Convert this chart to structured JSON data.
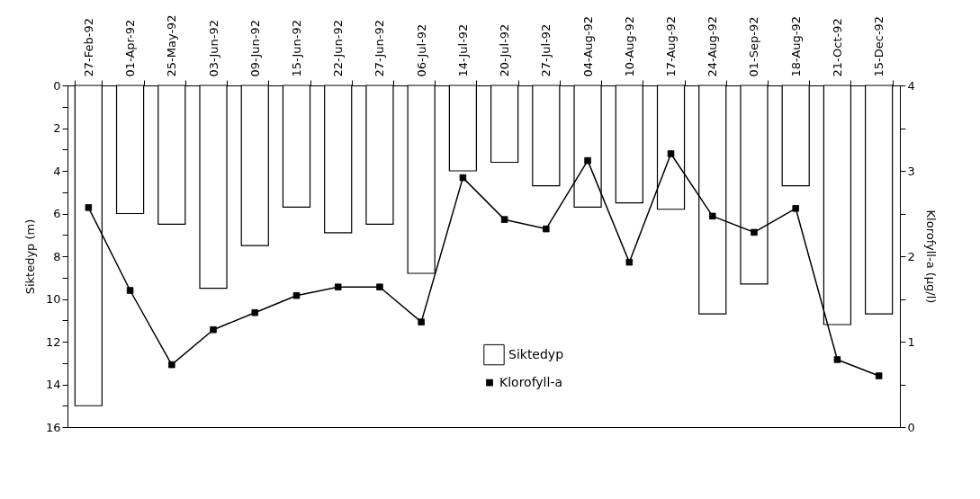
{
  "chart_data": {
    "type": "bar",
    "ylabel": "Siktedyp (m)",
    "y2label": "Klorofyll-a (µg/l)",
    "categories": [
      "27-Feb-92",
      "01-Apr-92",
      "25-May-92",
      "03-Jun-92",
      "09-Jun-92",
      "15-Jun-92",
      "22-Jun-92",
      "27-Jun-92",
      "06-Jul-92",
      "14-Jul-92",
      "20-Jul-92",
      "27-Jul-92",
      "04-Aug-92",
      "10-Aug-92",
      "17-Aug-92",
      "24-Aug-92",
      "01-Sep-92",
      "18-Aug-92",
      "21-Oct-92",
      "15-Dec-92"
    ],
    "series": [
      {
        "name": "Siktedyp",
        "color": "#ffffff",
        "values": [
          15.0,
          6.0,
          6.5,
          9.5,
          7.5,
          5.7,
          6.9,
          6.5,
          8.8,
          4.0,
          3.6,
          4.7,
          5.7,
          5.5,
          5.8,
          10.7,
          9.3,
          4.7,
          11.2,
          10.7
        ]
      },
      {
        "name": "Klorofyll-a",
        "type": "line",
        "axis": "y2",
        "color": "#000000",
        "marker": "square",
        "values": [
          2.57,
          1.6,
          0.73,
          1.14,
          1.34,
          1.54,
          1.64,
          1.64,
          1.23,
          2.92,
          2.43,
          2.32,
          3.12,
          1.93,
          3.2,
          2.47,
          2.28,
          2.56,
          0.79,
          0.6
        ]
      }
    ],
    "ylim": [
      16,
      0
    ],
    "yticks": [
      0,
      {
        "value": 1,
        "label": null
      },
      2,
      {
        "value": 3,
        "label": null
      },
      4,
      {
        "value": 5,
        "label": null
      },
      6,
      {
        "value": 7,
        "label": null
      },
      8,
      {
        "value": 9,
        "label": null
      },
      10,
      {
        "value": 11,
        "label": null
      },
      12,
      {
        "value": 13,
        "label": null
      },
      14,
      {
        "value": 15,
        "label": null
      },
      16
    ],
    "y2lim": [
      0,
      4
    ],
    "y2ticks": [
      0,
      {
        "value": 0.5,
        "label": null
      },
      1,
      {
        "value": 1.5,
        "label": null
      },
      2,
      {
        "value": 2.5,
        "label": null
      },
      3,
      {
        "value": 3.5,
        "label": null
      },
      4
    ],
    "grid": false,
    "legend": "bottom"
  }
}
